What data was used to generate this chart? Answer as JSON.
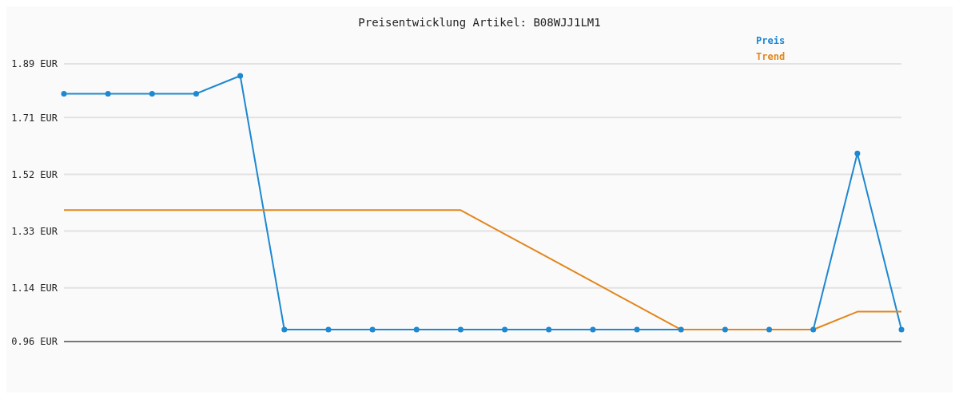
{
  "chart_data": {
    "type": "line",
    "title": "Preisentwicklung Artikel: B08WJJ1LM1",
    "categories": [
      null,
      null,
      null,
      null,
      null,
      null,
      null,
      null,
      null,
      null,
      null,
      null,
      null,
      null,
      null,
      null,
      null,
      null,
      null,
      null
    ],
    "series": [
      {
        "name": "Preis",
        "color": "#1e88d0",
        "marker": "circle",
        "values": [
          1.79,
          1.79,
          1.79,
          1.79,
          1.85,
          1.0,
          1.0,
          1.0,
          1.0,
          1.0,
          1.0,
          1.0,
          1.0,
          1.0,
          1.0,
          1.0,
          1.0,
          1.0,
          1.59,
          1.0
        ]
      },
      {
        "name": "Trend",
        "color": "#e2861c",
        "marker": "none",
        "values": [
          1.4,
          1.4,
          1.4,
          1.4,
          1.4,
          1.4,
          1.4,
          1.4,
          1.4,
          1.4,
          1.32,
          1.24,
          1.16,
          1.08,
          1.0,
          1.0,
          1.0,
          1.0,
          1.06,
          1.06
        ]
      }
    ],
    "ylim": [
      0.96,
      1.89
    ],
    "yticks": [
      {
        "value": 0.96,
        "label": "0.96 EUR"
      },
      {
        "value": 1.14,
        "label": "1.14 EUR"
      },
      {
        "value": 1.33,
        "label": "1.33 EUR"
      },
      {
        "value": 1.52,
        "label": "1.52 EUR"
      },
      {
        "value": 1.71,
        "label": "1.71 EUR"
      },
      {
        "value": 1.89,
        "label": "1.89 EUR"
      }
    ],
    "grid": "y",
    "legend": "top right",
    "line_style": "solid"
  }
}
